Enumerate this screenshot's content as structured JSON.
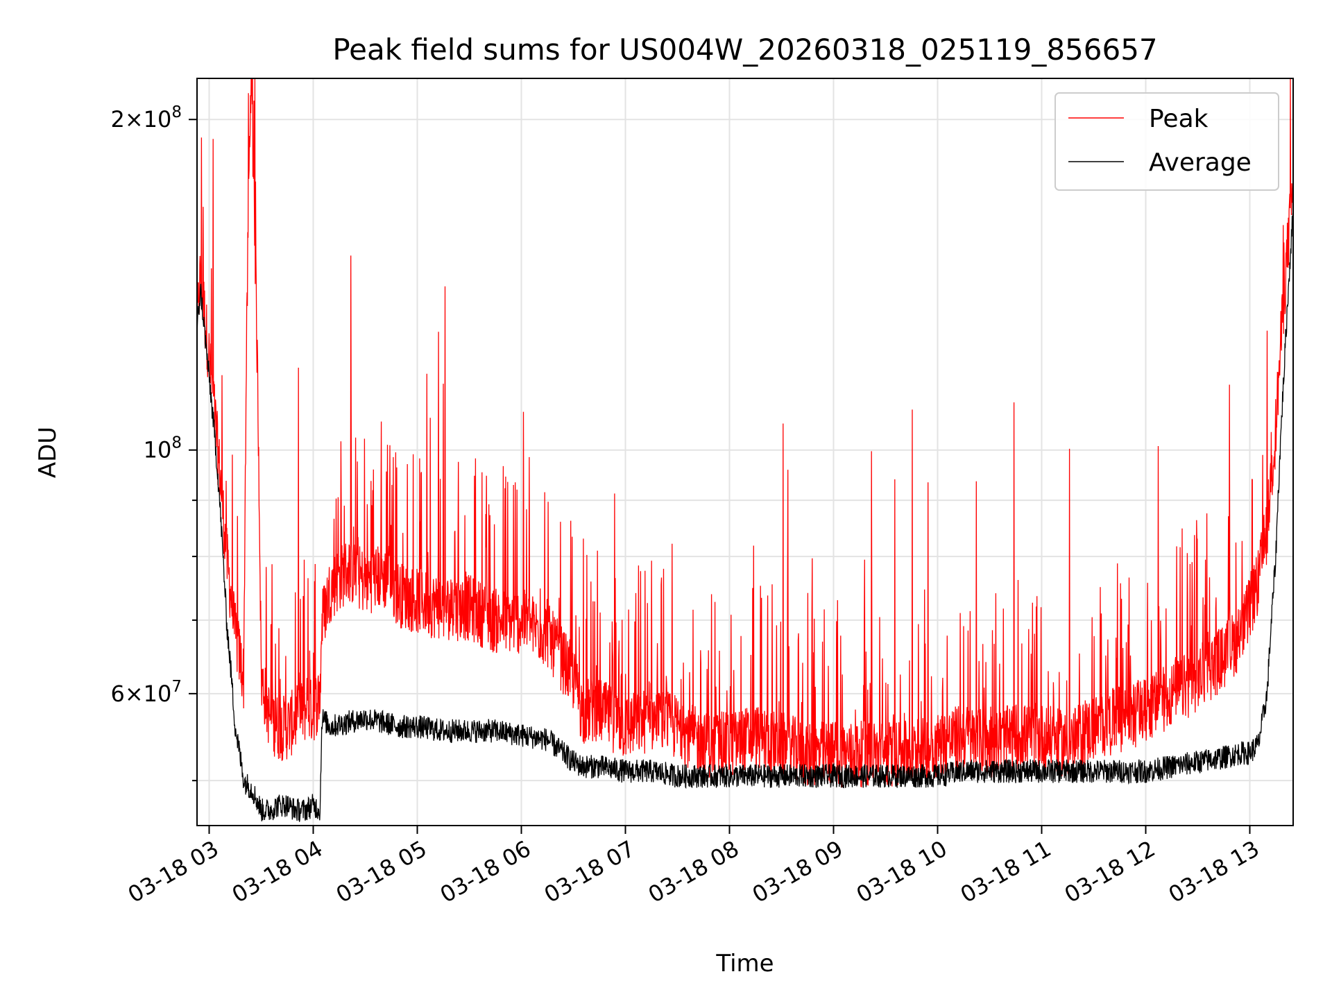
{
  "chart_data": {
    "type": "line",
    "title": "Peak field sums for US004W_20260318_025119_856657",
    "xlabel": "Time",
    "ylabel": "ADU",
    "yscale": "log",
    "ylim": [
      45500000,
      218000000
    ],
    "xlim": [
      "03-18 02:53",
      "03-18 13:25"
    ],
    "grid": true,
    "legend": {
      "placement": "top-right",
      "entries": [
        "Peak",
        "Average"
      ]
    },
    "x_ticks": [
      "03-18 03",
      "03-18 04",
      "03-18 05",
      "03-18 06",
      "03-18 07",
      "03-18 08",
      "03-18 09",
      "03-18 10",
      "03-18 11",
      "03-18 12",
      "03-18 13"
    ],
    "y_major_ticks": [
      {
        "value": 60000000,
        "label_mant": "6",
        "label_exp": "7",
        "mode": "times"
      },
      {
        "value": 100000000,
        "label_mant": "",
        "label_exp": "8",
        "mode": "pow"
      },
      {
        "value": 200000000,
        "label_mant": "2",
        "label_exp": "8",
        "mode": "times"
      }
    ],
    "y_minor_ticks": [
      50000000,
      70000000,
      80000000,
      90000000
    ],
    "series": [
      {
        "name": "Peak",
        "color": "#ff0000",
        "x": [
          "02:53",
          "02:55",
          "02:58",
          "03:05",
          "03:10",
          "03:15",
          "03:20",
          "03:24",
          "03:30",
          "03:35",
          "03:40",
          "03:45",
          "03:50",
          "03:55",
          "04:00",
          "04:04",
          "04:05",
          "04:10",
          "04:20",
          "04:30",
          "04:40",
          "04:50",
          "05:00",
          "05:15",
          "05:30",
          "05:45",
          "06:00",
          "06:15",
          "06:30",
          "06:35",
          "06:45",
          "07:00",
          "07:15",
          "07:30",
          "07:45",
          "08:00",
          "08:15",
          "08:30",
          "08:45",
          "09:00",
          "09:15",
          "09:30",
          "09:45",
          "10:00",
          "10:15",
          "10:30",
          "10:45",
          "11:00",
          "11:15",
          "11:30",
          "11:45",
          "12:00",
          "12:15",
          "12:30",
          "12:45",
          "12:55",
          "13:00",
          "13:05",
          "13:10",
          "13:15",
          "13:20",
          "13:25"
        ],
        "y": [
          130000000,
          145000000,
          130000000,
          100000000,
          80000000,
          68000000,
          62000000,
          218000000,
          62000000,
          57000000,
          56000000,
          56000000,
          57000000,
          58000000,
          58000000,
          60000000,
          70000000,
          75000000,
          78000000,
          76000000,
          77000000,
          74000000,
          73000000,
          72000000,
          72000000,
          70000000,
          70000000,
          68000000,
          62000000,
          58000000,
          58000000,
          56000000,
          57000000,
          56000000,
          54000000,
          54000000,
          55000000,
          54000000,
          53000000,
          53000000,
          53000000,
          53000000,
          53000000,
          54000000,
          55000000,
          54000000,
          55000000,
          55000000,
          54000000,
          56000000,
          57000000,
          58000000,
          60000000,
          62000000,
          65000000,
          68000000,
          72000000,
          76000000,
          85000000,
          105000000,
          140000000,
          175000000
        ]
      },
      {
        "name": "Average",
        "color": "#000000",
        "x": [
          "02:53",
          "02:55",
          "02:58",
          "03:05",
          "03:10",
          "03:15",
          "03:20",
          "03:25",
          "03:30",
          "03:35",
          "03:40",
          "03:45",
          "03:50",
          "03:55",
          "04:00",
          "04:04",
          "04:05",
          "04:10",
          "04:20",
          "04:30",
          "04:40",
          "04:50",
          "05:00",
          "05:15",
          "05:30",
          "05:45",
          "06:00",
          "06:15",
          "06:30",
          "06:35",
          "06:45",
          "07:00",
          "07:15",
          "07:30",
          "07:45",
          "08:00",
          "08:15",
          "08:30",
          "08:45",
          "09:00",
          "09:15",
          "09:30",
          "09:45",
          "10:00",
          "10:15",
          "10:30",
          "10:45",
          "11:00",
          "11:15",
          "11:30",
          "11:45",
          "12:00",
          "12:15",
          "12:30",
          "12:45",
          "12:55",
          "13:00",
          "13:05",
          "13:10",
          "13:15",
          "13:20",
          "13:25"
        ],
        "y": [
          128000000,
          140000000,
          125000000,
          95000000,
          70000000,
          56000000,
          50000000,
          49000000,
          47000000,
          47000000,
          47500000,
          47500000,
          47000000,
          47000000,
          47500000,
          47000000,
          57000000,
          56000000,
          56500000,
          57000000,
          56500000,
          56000000,
          56000000,
          55500000,
          55500000,
          55500000,
          55000000,
          54500000,
          52000000,
          51500000,
          51500000,
          51000000,
          51000000,
          50500000,
          50500000,
          50500000,
          50500000,
          50500000,
          50500000,
          50500000,
          50500000,
          50500000,
          50500000,
          50500000,
          51000000,
          51000000,
          51000000,
          51000000,
          51000000,
          51000000,
          51000000,
          51000000,
          51500000,
          52000000,
          52500000,
          53000000,
          53000000,
          54000000,
          60000000,
          80000000,
          120000000,
          165000000
        ]
      }
    ]
  }
}
